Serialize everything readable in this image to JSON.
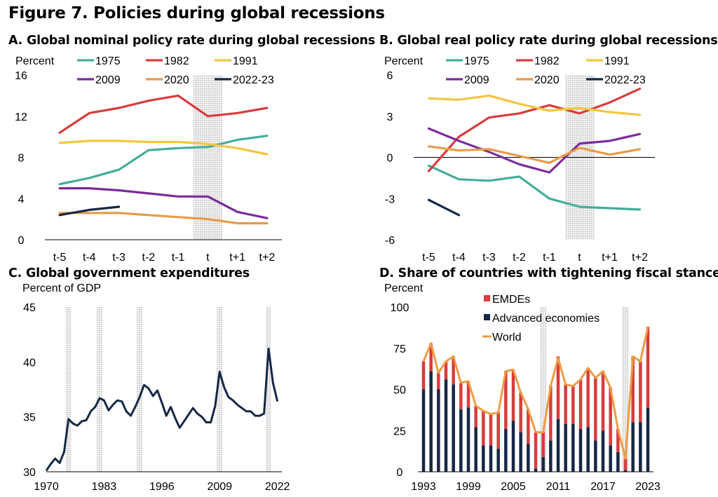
{
  "figure_title": "Figure 7. Policies during global recessions",
  "colors": {
    "c1975": "#44AD99",
    "c1982": "#D83C3C",
    "c1991": "#F4C540",
    "c2009": "#7B2C9B",
    "c2020": "#E89A4A",
    "c2022": "#152845",
    "navy": "#152845",
    "red": "#D83C3C",
    "orange": "#EF9B45",
    "shade": "#cfcfcf"
  },
  "chart_data": [
    {
      "id": "A",
      "type": "line",
      "title": "A. Global nominal policy rate during global recessions",
      "ylabel": "Percent",
      "xlabel": "",
      "categories": [
        "t-5",
        "t-4",
        "t-3",
        "t-2",
        "t-1",
        "t",
        "t+1",
        "t+2"
      ],
      "ylim": [
        0,
        16
      ],
      "yticks": [
        0,
        4,
        8,
        12,
        16
      ],
      "shaded_category": "t",
      "series": [
        {
          "name": "1975",
          "color_key": "c1975",
          "values": [
            5.4,
            6.0,
            6.8,
            8.7,
            8.9,
            9.0,
            9.7,
            10.1
          ]
        },
        {
          "name": "1982",
          "color_key": "c1982",
          "values": [
            10.4,
            12.3,
            12.8,
            13.5,
            14.0,
            12.0,
            12.3,
            12.8
          ]
        },
        {
          "name": "1991",
          "color_key": "c1991",
          "values": [
            9.4,
            9.6,
            9.6,
            9.5,
            9.5,
            9.3,
            8.9,
            8.3
          ]
        },
        {
          "name": "2009",
          "color_key": "c2009",
          "values": [
            5.0,
            5.0,
            4.8,
            4.5,
            4.2,
            4.2,
            2.7,
            2.1
          ]
        },
        {
          "name": "2020",
          "color_key": "c2020",
          "values": [
            2.6,
            2.6,
            2.6,
            2.4,
            2.2,
            2.0,
            1.6,
            1.6
          ]
        },
        {
          "name": "2022-23",
          "color_key": "c2022",
          "values": [
            2.4,
            2.9,
            3.2,
            null,
            null,
            null,
            null,
            null
          ]
        }
      ]
    },
    {
      "id": "B",
      "type": "line",
      "title": "B. Global real policy rate during global recessions",
      "ylabel": "Percent",
      "xlabel": "",
      "categories": [
        "t-5",
        "t-4",
        "t-3",
        "t-2",
        "t-1",
        "t",
        "t+1",
        "t+2"
      ],
      "ylim": [
        -6,
        6
      ],
      "yticks": [
        -6,
        -3,
        0,
        3,
        6
      ],
      "shaded_category": "t",
      "series": [
        {
          "name": "1975",
          "color_key": "c1975",
          "values": [
            -0.6,
            -1.6,
            -1.7,
            -1.4,
            -3.0,
            -3.6,
            -3.7,
            -3.8
          ]
        },
        {
          "name": "1982",
          "color_key": "c1982",
          "values": [
            -1.0,
            1.5,
            2.9,
            3.2,
            3.8,
            3.2,
            4.0,
            5.0
          ]
        },
        {
          "name": "1991",
          "color_key": "c1991",
          "values": [
            4.3,
            4.2,
            4.5,
            3.9,
            3.4,
            3.6,
            3.3,
            3.1
          ]
        },
        {
          "name": "2009",
          "color_key": "c2009",
          "values": [
            2.1,
            1.2,
            0.4,
            -0.5,
            -1.1,
            1.0,
            1.2,
            1.7
          ]
        },
        {
          "name": "2020",
          "color_key": "c2020",
          "values": [
            0.8,
            0.5,
            0.6,
            0.1,
            -0.4,
            0.7,
            0.2,
            0.6
          ]
        },
        {
          "name": "2022-23",
          "color_key": "c2022",
          "values": [
            -3.1,
            -4.2,
            null,
            null,
            null,
            null,
            null,
            null
          ]
        }
      ]
    },
    {
      "id": "C",
      "type": "line",
      "title": "C. Global government expenditures",
      "ylabel": "Percent of GDP",
      "xlabel": "",
      "x": [
        1970,
        1971,
        1972,
        1973,
        1974,
        1975,
        1976,
        1977,
        1978,
        1979,
        1980,
        1981,
        1982,
        1983,
        1984,
        1985,
        1986,
        1987,
        1988,
        1989,
        1990,
        1991,
        1992,
        1993,
        1994,
        1995,
        1996,
        1997,
        1998,
        1999,
        2000,
        2001,
        2002,
        2003,
        2004,
        2005,
        2006,
        2007,
        2008,
        2009,
        2010,
        2011,
        2012,
        2013,
        2014,
        2015,
        2016,
        2017,
        2018,
        2019,
        2020,
        2021,
        2022
      ],
      "xlim": [
        1970,
        2023
      ],
      "xticks": [
        1970,
        1983,
        1996,
        2009,
        2022
      ],
      "ylim": [
        30,
        45
      ],
      "yticks": [
        30,
        35,
        40,
        45
      ],
      "shaded_years": [
        1975,
        1982,
        1991,
        2009,
        2020
      ],
      "series": [
        {
          "name": "Global government expenditures",
          "color_key": "navy",
          "values": [
            30.1,
            30.7,
            31.2,
            30.8,
            31.8,
            34.8,
            34.4,
            34.2,
            34.6,
            34.7,
            35.5,
            35.9,
            36.7,
            36.5,
            35.6,
            36.1,
            36.5,
            36.4,
            35.5,
            35.1,
            35.9,
            36.8,
            37.9,
            37.6,
            36.9,
            37.4,
            36.3,
            35.1,
            35.9,
            34.9,
            34.0,
            34.6,
            35.2,
            35.8,
            35.3,
            35.0,
            34.5,
            34.5,
            36.0,
            39.1,
            37.7,
            36.8,
            36.5,
            36.1,
            35.8,
            35.5,
            35.5,
            35.1,
            35.1,
            35.3,
            41.2,
            38.1,
            36.4
          ]
        }
      ]
    },
    {
      "id": "D",
      "type": "bar",
      "title": "D. Share of countries with tightening fiscal stance",
      "ylabel": "Percent",
      "xlabel": "",
      "x": [
        1993,
        1994,
        1995,
        1996,
        1997,
        1998,
        1999,
        2000,
        2001,
        2002,
        2003,
        2004,
        2005,
        2006,
        2007,
        2008,
        2009,
        2010,
        2011,
        2012,
        2013,
        2014,
        2015,
        2016,
        2017,
        2018,
        2019,
        2020,
        2021,
        2022,
        2023
      ],
      "xticks": [
        1993,
        1999,
        2005,
        2011,
        2017,
        2023
      ],
      "ylim": [
        0,
        100
      ],
      "yticks": [
        0,
        25,
        50,
        75,
        100
      ],
      "shaded_years": [
        2009,
        2020
      ],
      "series": [
        {
          "name": "EMDEs",
          "color_key": "red",
          "kind": "stacked-bar",
          "values": [
            17,
            17,
            10,
            11,
            17,
            16,
            16,
            13,
            21,
            19,
            22,
            35,
            31,
            24,
            21,
            22,
            15,
            33,
            38,
            24,
            23,
            30,
            36,
            38,
            36,
            35,
            14,
            7,
            40,
            37,
            49
          ]
        },
        {
          "name": "Advanced economies",
          "color_key": "navy",
          "kind": "stacked-bar",
          "values": [
            50,
            61,
            50,
            56,
            53,
            38,
            39,
            27,
            16,
            16,
            14,
            26,
            31,
            24,
            17,
            2,
            9,
            19,
            32,
            29,
            29,
            26,
            27,
            19,
            25,
            16,
            12,
            1,
            30,
            30,
            39
          ]
        },
        {
          "name": "World",
          "color_key": "orange",
          "kind": "line",
          "values": [
            67,
            78,
            60,
            67,
            70,
            54,
            55,
            40,
            37,
            35,
            36,
            61,
            62,
            48,
            38,
            24,
            24,
            52,
            69,
            53,
            52,
            56,
            63,
            57,
            61,
            51,
            26,
            8,
            70,
            67,
            88
          ]
        }
      ]
    }
  ]
}
